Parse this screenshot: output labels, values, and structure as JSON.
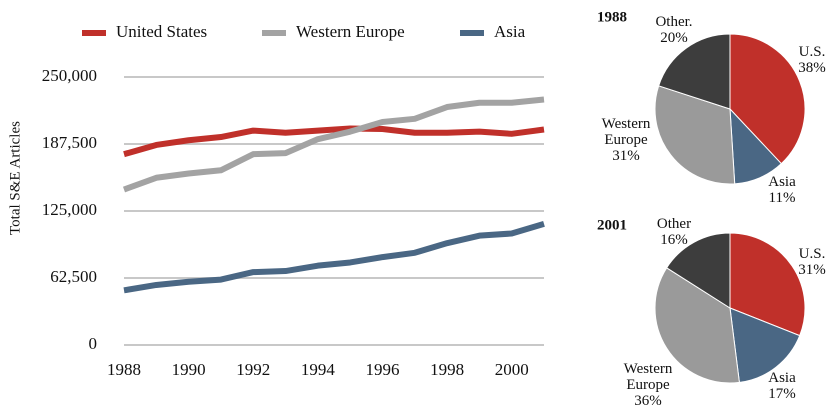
{
  "chart_data": [
    {
      "type": "line",
      "y_label": "Total S&E Articles",
      "x": [
        1988,
        1989,
        1990,
        1991,
        1992,
        1993,
        1994,
        1995,
        1996,
        1997,
        1998,
        1999,
        2000,
        2001
      ],
      "xlim": [
        1988,
        2001
      ],
      "xticks": [
        1988,
        1990,
        1992,
        1994,
        1996,
        1998,
        2000
      ],
      "ylim": [
        0,
        250000
      ],
      "yticks": [
        0,
        {
          "value": 62500,
          "label": "62,500"
        },
        {
          "value": 125000,
          "label": "125,000"
        },
        {
          "value": 187500,
          "label": "187,500"
        },
        {
          "value": 250000,
          "label": "250,000"
        }
      ],
      "grid": true,
      "series": [
        {
          "name": "United States",
          "color": "#c0302a",
          "values": [
            178000,
            186600,
            191000,
            194000,
            200000,
            198000,
            200000,
            202000,
            201500,
            198000,
            198000,
            199000,
            197000,
            201000
          ]
        },
        {
          "name": "Western Europe",
          "color": "#a3a3a3",
          "values": [
            145000,
            156000,
            160000,
            163000,
            178000,
            179000,
            192000,
            199000,
            208000,
            211000,
            222000,
            226000,
            226000,
            229000
          ]
        },
        {
          "name": "Asia",
          "color": "#4a6784",
          "values": [
            51000,
            56000,
            59000,
            61000,
            68000,
            69000,
            74000,
            77000,
            82000,
            86000,
            95000,
            102000,
            104000,
            113000
          ]
        }
      ]
    },
    {
      "type": "pie",
      "title": "1988",
      "categories": [
        "U.S.",
        "Asia",
        "Western Europe",
        "Other."
      ],
      "values": [
        38,
        11,
        31,
        20
      ],
      "value_labels": [
        "38%",
        "11%",
        "31%",
        "20%"
      ],
      "colors": [
        "#c0302a",
        "#4a6784",
        "#9a9a9a",
        "#3d3d3d"
      ]
    },
    {
      "type": "pie",
      "title": "2001",
      "categories": [
        "U.S.",
        "Asia",
        "Western Europe",
        "Other"
      ],
      "values": [
        31,
        17,
        36,
        16
      ],
      "value_labels": [
        "31%",
        "17%",
        "36%",
        "16%"
      ],
      "colors": [
        "#c0302a",
        "#4a6784",
        "#9a9a9a",
        "#3d3d3d"
      ]
    }
  ]
}
